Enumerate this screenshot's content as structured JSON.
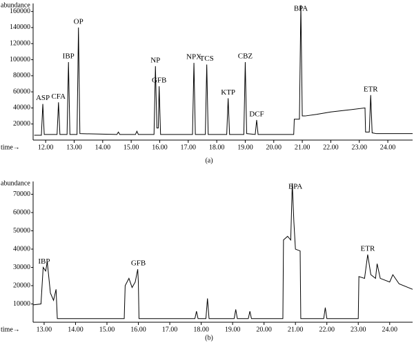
{
  "chart_data": [
    {
      "type": "line",
      "caption": "(a)",
      "y_label": "abundance",
      "x_label": "time→",
      "color": "#000000",
      "x": [
        11.6,
        11.85,
        11.9,
        11.95,
        12.4,
        12.45,
        12.5,
        12.75,
        12.8,
        12.85,
        13.1,
        13.15,
        13.2,
        14.5,
        14.55,
        14.6,
        15.15,
        15.2,
        15.25,
        15.8,
        15.85,
        15.9,
        15.95,
        15.98,
        16.03,
        17.15,
        17.2,
        17.25,
        17.6,
        17.65,
        17.7,
        18.35,
        18.4,
        18.45,
        18.95,
        19.0,
        19.05,
        19.35,
        19.4,
        19.45,
        20.7,
        20.72,
        20.9,
        20.95,
        21.0,
        21.1,
        21.5,
        22.0,
        22.5,
        23.2,
        23.22,
        23.35,
        23.4,
        23.45,
        23.6,
        24.87
      ],
      "values": [
        6000,
        6000,
        45000,
        7000,
        7000,
        47000,
        7000,
        7000,
        97000,
        7000,
        7000,
        140000,
        8000,
        7000,
        10000,
        7000,
        7000,
        11000,
        7000,
        7000,
        92000,
        15000,
        15000,
        67000,
        7000,
        7000,
        96000,
        7000,
        7000,
        94000,
        7000,
        7000,
        52000,
        7000,
        7000,
        97000,
        8000,
        7000,
        25000,
        7000,
        7000,
        26000,
        26000,
        168000,
        30000,
        30000,
        32000,
        35000,
        37000,
        40000,
        10000,
        10000,
        56000,
        9000,
        8000,
        8000
      ],
      "xlim": [
        11.56,
        24.87
      ],
      "ylim": [
        0,
        170000
      ],
      "xticks": [
        {
          "value": 12,
          "label": "12.00"
        },
        {
          "value": 13,
          "label": "13.00"
        },
        {
          "value": 14,
          "label": "14.00"
        },
        {
          "value": 15,
          "label": "15.00"
        },
        {
          "value": 16,
          "label": "16.00"
        },
        {
          "value": 17,
          "label": "17.00"
        },
        {
          "value": 18,
          "label": "18.00"
        },
        {
          "value": 19,
          "label": "19.00"
        },
        {
          "value": 20,
          "label": "20.00"
        },
        {
          "value": 21,
          "label": "21.00"
        },
        {
          "value": 22,
          "label": "22.00"
        },
        {
          "value": 23,
          "label": "23.00"
        },
        {
          "value": 24,
          "label": "24.00"
        }
      ],
      "yticks": [
        20000,
        40000,
        60000,
        80000,
        100000,
        120000,
        140000,
        160000
      ],
      "annotations": [
        {
          "text": "ASP",
          "x": 11.9,
          "y": 45000
        },
        {
          "text": "CFA",
          "x": 12.45,
          "y": 47000
        },
        {
          "text": "IBP",
          "x": 12.8,
          "y": 97000
        },
        {
          "text": "OP",
          "x": 13.15,
          "y": 140000
        },
        {
          "text": "NP",
          "x": 15.85,
          "y": 92000
        },
        {
          "text": "GFB",
          "x": 15.98,
          "y": 67000
        },
        {
          "text": "NPX",
          "x": 17.2,
          "y": 96000
        },
        {
          "text": "TCS",
          "x": 17.65,
          "y": 94000
        },
        {
          "text": "KTP",
          "x": 18.4,
          "y": 52000
        },
        {
          "text": "CBZ",
          "x": 19.0,
          "y": 97000
        },
        {
          "text": "DCF",
          "x": 19.4,
          "y": 25000
        },
        {
          "text": "BPA",
          "x": 20.95,
          "y": 168000
        },
        {
          "text": "ETR",
          "x": 23.4,
          "y": 56000
        }
      ]
    },
    {
      "type": "line",
      "caption": "(b)",
      "y_label": "abundance",
      "x_label": "time→",
      "color": "#000000",
      "x": [
        12.65,
        12.9,
        12.97,
        13.05,
        13.1,
        13.2,
        13.3,
        13.38,
        13.42,
        13.45,
        15.55,
        15.58,
        15.7,
        15.8,
        15.9,
        15.98,
        16.0,
        16.02,
        17.8,
        17.85,
        17.9,
        18.15,
        18.2,
        18.25,
        19.05,
        19.1,
        19.15,
        19.5,
        19.55,
        19.6,
        20.6,
        20.62,
        20.75,
        20.85,
        20.9,
        20.95,
        21.0,
        21.15,
        21.17,
        21.9,
        21.95,
        22.0,
        23.0,
        23.02,
        23.2,
        23.3,
        23.4,
        23.55,
        23.6,
        23.7,
        24.0,
        24.1,
        24.3,
        24.73
      ],
      "values": [
        9500,
        10000,
        30000,
        28000,
        33000,
        16000,
        12000,
        18000,
        2000,
        2000,
        2000,
        20000,
        24000,
        19000,
        22000,
        29000,
        22000,
        2000,
        2000,
        6000,
        2000,
        2000,
        13000,
        2000,
        2000,
        7000,
        2000,
        2000,
        6000,
        2000,
        2000,
        45000,
        47000,
        45000,
        76000,
        55000,
        40000,
        39000,
        2000,
        2000,
        8000,
        2000,
        2000,
        25000,
        24000,
        37000,
        26000,
        24000,
        32000,
        24000,
        22000,
        26000,
        21000,
        18000
      ],
      "xlim": [
        12.65,
        24.73
      ],
      "ylim": [
        0,
        77000
      ],
      "xticks": [
        {
          "value": 13,
          "label": "13.00"
        },
        {
          "value": 14,
          "label": "14.00"
        },
        {
          "value": 15,
          "label": "15.00"
        },
        {
          "value": 16,
          "label": "16.00"
        },
        {
          "value": 17,
          "label": "17.00"
        },
        {
          "value": 18,
          "label": "18.00"
        },
        {
          "value": 19,
          "label": "19.00"
        },
        {
          "value": 20,
          "label": "20.00"
        },
        {
          "value": 21,
          "label": "21.00"
        },
        {
          "value": 22,
          "label": "22.00"
        },
        {
          "value": 23,
          "label": "23.00"
        },
        {
          "value": 24,
          "label": "24.00"
        }
      ],
      "yticks": [
        10000,
        20000,
        30000,
        40000,
        50000,
        60000,
        70000
      ],
      "annotations": [
        {
          "text": "IBP",
          "x": 13.0,
          "y": 30000
        },
        {
          "text": "GFB",
          "x": 16.0,
          "y": 29000
        },
        {
          "text": "BPA",
          "x": 21.0,
          "y": 76000
        },
        {
          "text": "ETR",
          "x": 23.3,
          "y": 37000
        }
      ]
    }
  ]
}
